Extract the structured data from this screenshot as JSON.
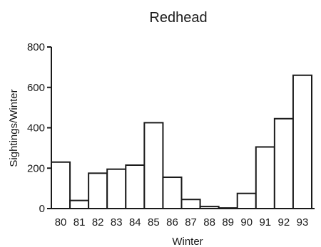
{
  "chart_data": {
    "type": "bar",
    "title": "Redhead",
    "xlabel": "Winter",
    "ylabel": "Sightings/Winter",
    "categories": [
      "80",
      "81",
      "82",
      "83",
      "84",
      "85",
      "86",
      "87",
      "88",
      "89",
      "90",
      "91",
      "92",
      "93"
    ],
    "values": [
      230,
      40,
      175,
      195,
      215,
      425,
      155,
      45,
      10,
      3,
      75,
      305,
      445,
      660
    ],
    "ylim": [
      0,
      800
    ],
    "yticks": [
      "0",
      "200",
      "400",
      "600",
      "800"
    ],
    "grid": false,
    "legend": "none"
  }
}
